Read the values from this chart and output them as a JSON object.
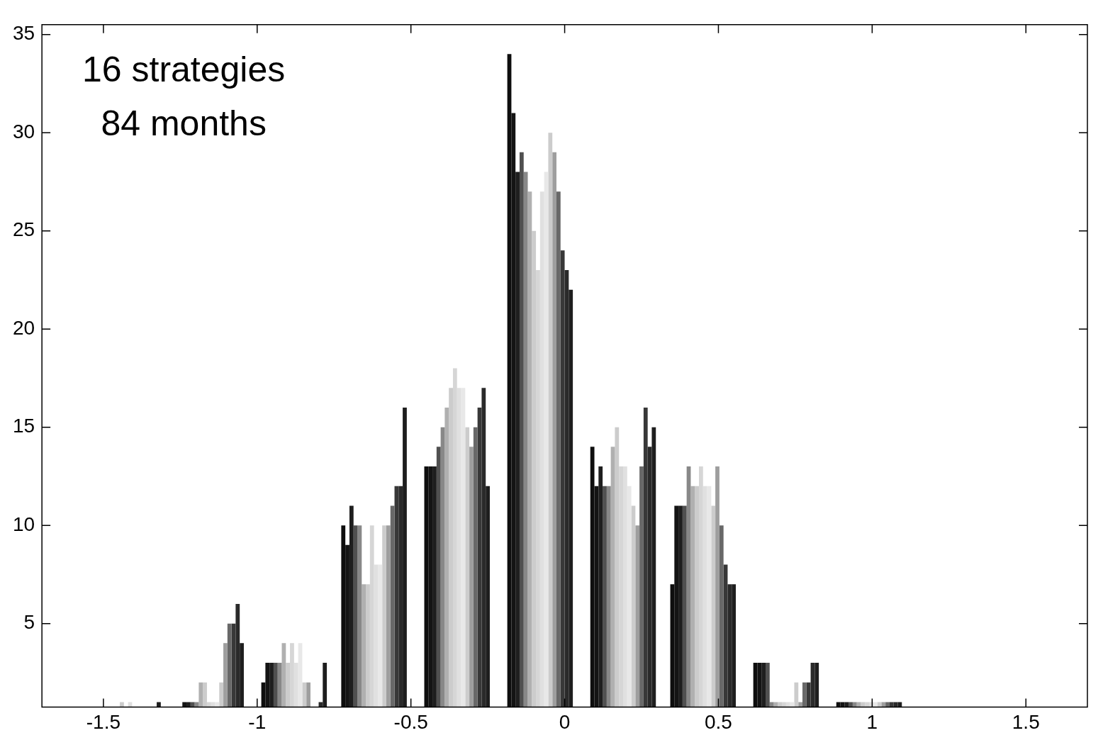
{
  "chart_data": {
    "type": "bar",
    "x": [
      -1.42,
      -1.15,
      -0.88,
      -0.62,
      -0.35,
      -0.08,
      0.19,
      0.45,
      0.72,
      0.99
    ],
    "xlim": [
      -1.7,
      1.7
    ],
    "xticks": [
      -1.5,
      -1,
      -0.5,
      0,
      0.5,
      1,
      1.5
    ],
    "ylim": [
      0.75,
      35.5
    ],
    "yticks": [
      5,
      10,
      15,
      20,
      25,
      30,
      35
    ],
    "grid": false,
    "legend": false,
    "annotations": [
      "16 strategies",
      "84 months"
    ],
    "series": [
      {
        "color": "#0e0e0e",
        "values": [
          null,
          null,
          2,
          10,
          13,
          34,
          14,
          7,
          3,
          1
        ]
      },
      {
        "color": "#141414",
        "values": [
          null,
          1,
          3,
          9,
          13,
          31,
          12,
          11,
          3,
          1
        ]
      },
      {
        "color": "#1e1e1e",
        "values": [
          null,
          1,
          3,
          11,
          13,
          28,
          13,
          11,
          3,
          1
        ]
      },
      {
        "color": "#505050",
        "values": [
          null,
          1,
          3,
          10,
          14,
          29,
          12,
          11,
          3,
          1
        ]
      },
      {
        "color": "#888888",
        "values": [
          null,
          1,
          3,
          10,
          15,
          28,
          12,
          13,
          1,
          1
        ]
      },
      {
        "color": "#b0b0b0",
        "values": [
          null,
          2,
          4,
          7,
          16,
          27,
          14,
          12,
          1,
          1
        ]
      },
      {
        "color": "#cccccc",
        "values": [
          1,
          2,
          3,
          7,
          17,
          25,
          15,
          12,
          1,
          1
        ]
      },
      {
        "color": "#d6d6d6",
        "values": [
          null,
          1,
          4,
          10,
          18,
          23,
          13,
          13,
          1,
          1
        ]
      },
      {
        "color": "#e0e0e0",
        "values": [
          1,
          1,
          3,
          8,
          17,
          27,
          13,
          12,
          1,
          1
        ]
      },
      {
        "color": "#e8e8e8",
        "values": [
          null,
          1,
          4,
          8,
          17,
          28,
          12,
          12,
          1,
          1
        ]
      },
      {
        "color": "#cccccc",
        "values": [
          null,
          2,
          2,
          10,
          15,
          30,
          11,
          11,
          2,
          1
        ]
      },
      {
        "color": "#9e9e9e",
        "values": [
          null,
          4,
          2,
          10,
          14,
          29,
          10,
          13,
          1,
          1
        ]
      },
      {
        "color": "#686868",
        "values": [
          null,
          5,
          null,
          11,
          15,
          27,
          13,
          10,
          2,
          1
        ]
      },
      {
        "color": "#383838",
        "values": [
          null,
          5,
          null,
          12,
          16,
          24,
          16,
          8,
          2,
          1
        ]
      },
      {
        "color": "#2a2a2a",
        "values": [
          null,
          6,
          1,
          12,
          17,
          23,
          14,
          7,
          3,
          1
        ]
      },
      {
        "color": "#1e1e1e",
        "values": [
          1,
          4,
          3,
          16,
          12,
          22,
          15,
          7,
          3,
          1
        ]
      }
    ]
  }
}
